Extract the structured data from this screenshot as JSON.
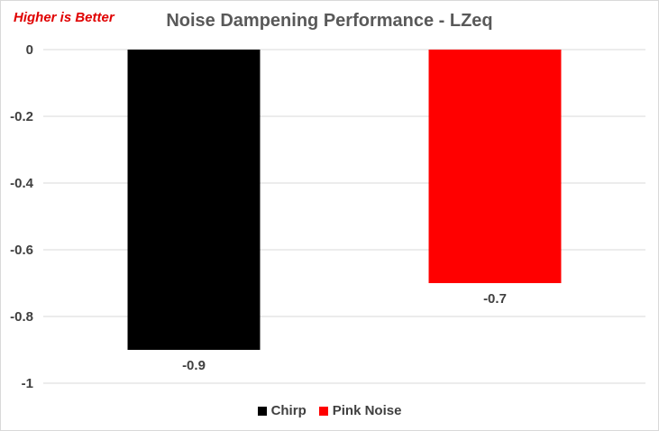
{
  "annotation": "Higher is Better",
  "chart_data": {
    "type": "bar",
    "title": "Noise Dampening Performance - LZeq",
    "xlabel": "",
    "ylabel": "",
    "ylim": [
      -1,
      0
    ],
    "yticks": [
      0,
      -0.2,
      -0.4,
      -0.6,
      -0.8,
      -1
    ],
    "ytick_labels": [
      "0",
      "-0.2",
      "-0.4",
      "-0.6",
      "-0.8",
      "-1"
    ],
    "grid": true,
    "legend_position": "bottom",
    "series": [
      {
        "name": "Chirp",
        "value": -0.9,
        "label": "-0.9",
        "color": "#000000"
      },
      {
        "name": "Pink Noise",
        "value": -0.7,
        "label": "-0.7",
        "color": "#ff0000"
      }
    ]
  }
}
